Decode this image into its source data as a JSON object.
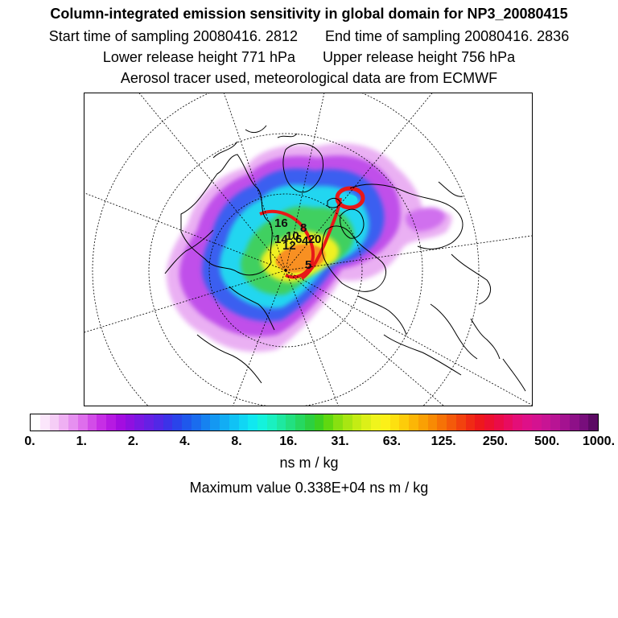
{
  "title": {
    "line1": "Column-integrated emission sensitivity in global domain for NP3_20080415",
    "start_label": "Start time of sampling 20080416.  2812",
    "end_label": "End time of sampling 20080416.  2836",
    "lower_label": "Lower release height  771 hPa",
    "upper_label": "Upper release height  756 hPa",
    "line4": "Aerosol tracer used, meteorological data are from ECMWF"
  },
  "colorbar": {
    "labels": [
      "0.",
      "1.",
      "2.",
      "4.",
      "8.",
      "16.",
      "31.",
      "63.",
      "125.",
      "250.",
      "500.",
      "1000."
    ],
    "colors": [
      "#ffffff",
      "#fbe6fb",
      "#f5cdf6",
      "#efb0f3",
      "#e690f0",
      "#de6eec",
      "#d24ce8",
      "#c62ee5",
      "#b61ae2",
      "#a30de0",
      "#8f10e0",
      "#7a18e2",
      "#6620e4",
      "#5228e6",
      "#3c33e8",
      "#2a44ea",
      "#1f58ec",
      "#1a6cee",
      "#1682f0",
      "#1498f2",
      "#12adf4",
      "#10c2f5",
      "#10d6f4",
      "#10e8f0",
      "#14f2dc",
      "#1af0c0",
      "#1ee8a0",
      "#22e080",
      "#26d860",
      "#2cd040",
      "#3cd020",
      "#60d810",
      "#88e010",
      "#a8e612",
      "#c4ec14",
      "#dcf018",
      "#f0f41c",
      "#fcf018",
      "#fde010",
      "#fdcc0a",
      "#fcb606",
      "#faa004",
      "#f88a04",
      "#f67206",
      "#f45a0a",
      "#f2420e",
      "#f02a14",
      "#ee181c",
      "#ec1030",
      "#ea0c48",
      "#e80c60",
      "#e40e78",
      "#de1088",
      "#d41290",
      "#c81494",
      "#b81494",
      "#a41290",
      "#8e1088",
      "#780e7c",
      "#5c0a64"
    ],
    "units": "ns m / kg",
    "max_value_text": "Maximum value  0.338E+04 ns m / kg"
  },
  "map": {
    "projection": "polar stereographic (north pole)",
    "plume_labels": [
      "16",
      "14",
      "12",
      "10",
      "8",
      "6",
      "4",
      "2",
      "0",
      "5"
    ],
    "colors": {
      "low": "#e8a0f0",
      "mid_low": "#a040e8",
      "mid": "#2a7af0",
      "cyan": "#20e8f0",
      "green": "#40d060",
      "yellow": "#f0f020",
      "orange": "#f89020",
      "red": "#e81818"
    }
  }
}
